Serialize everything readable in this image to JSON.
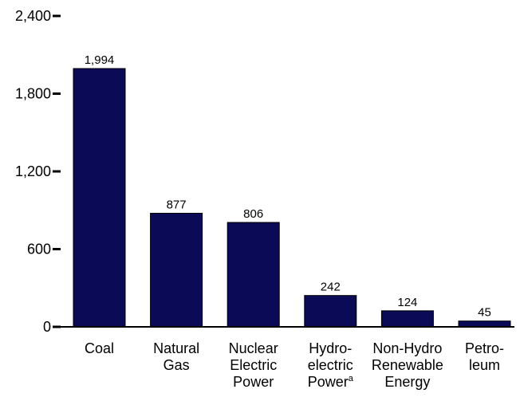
{
  "chart_data": {
    "type": "bar",
    "title": "",
    "xlabel": "",
    "ylabel": "",
    "ylim": [
      0,
      2400
    ],
    "yticks": [
      0,
      600,
      1200,
      1800,
      2400
    ],
    "ytick_labels": [
      "0",
      "600",
      "1,200",
      "1,800",
      "2,400"
    ],
    "grid": false,
    "legend": "none",
    "bar_color": "#0a0a57",
    "categories": [
      "Coal",
      "Natural Gas",
      "Nuclear Electric Power",
      "Hydro-electric Powerᵃ",
      "Non-Hydro Renewable Energy",
      "Petro-leum"
    ],
    "category_lines": [
      [
        "Coal"
      ],
      [
        "Natural",
        "Gas"
      ],
      [
        "Nuclear",
        "Electric",
        "Power"
      ],
      [
        "Hydro-",
        "electric",
        "Power"
      ],
      [
        "Non-Hydro",
        "Renewable",
        "Energy"
      ],
      [
        "Petro-",
        "leum"
      ]
    ],
    "category_superscripts": [
      "",
      "",
      "",
      "a",
      "",
      ""
    ],
    "values": [
      1994,
      877,
      806,
      242,
      124,
      45
    ],
    "value_labels": [
      "1,994",
      "877",
      "806",
      "242",
      "124",
      "45"
    ]
  }
}
